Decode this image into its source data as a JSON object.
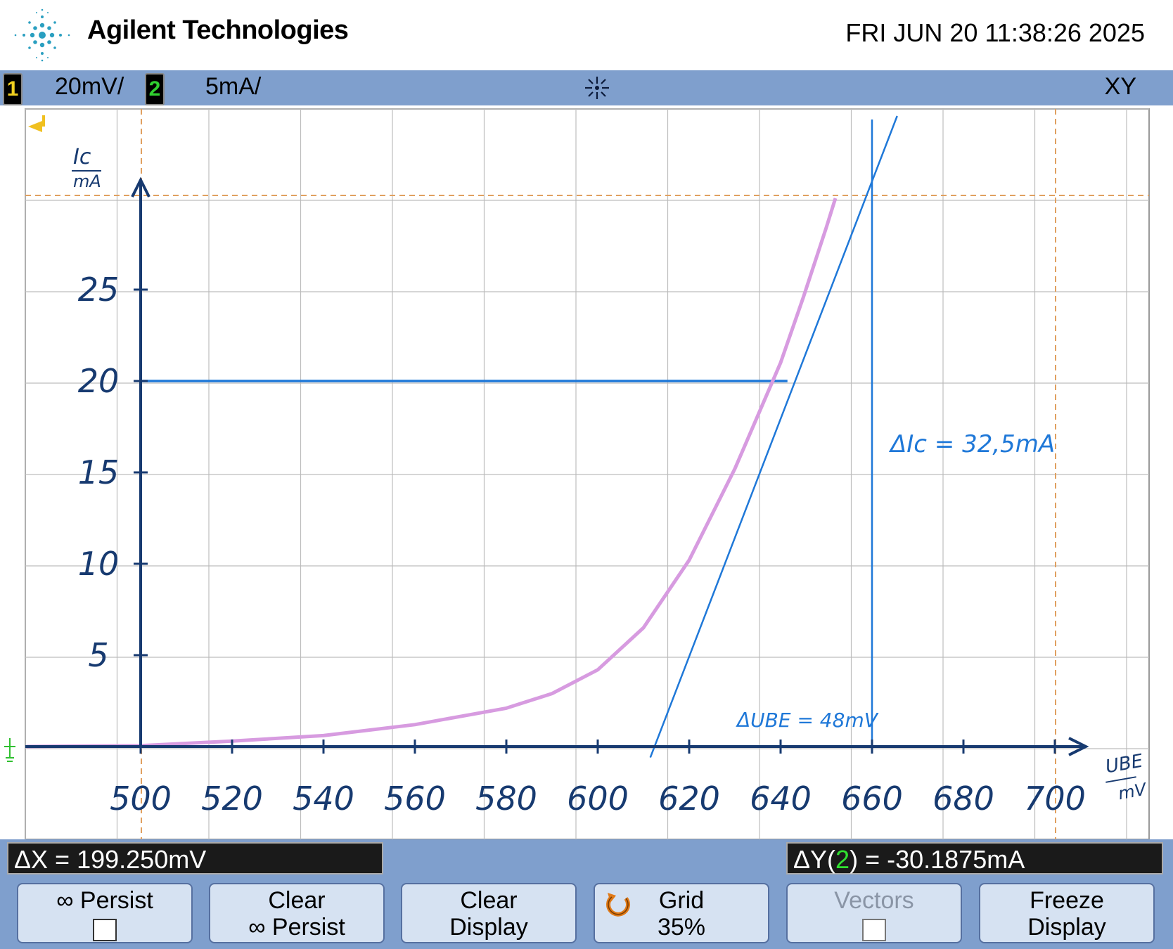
{
  "header": {
    "brand": "Agilent Technologies",
    "datetime": "FRI JUN 20 11:38:26 2025",
    "logo_icon": "agilent-spark-logo"
  },
  "status": {
    "ch1": {
      "number": "1",
      "scale": "20mV/",
      "color": "#f0d020"
    },
    "ch2": {
      "number": "2",
      "scale": "5mA/",
      "color": "#30d030"
    },
    "trigger_icon": "trigger-spark-icon",
    "mode": "XY"
  },
  "annotations": {
    "y_axis_label_top": "Ic",
    "y_axis_label_bottom": "mA",
    "x_axis_label_top": "UBE",
    "x_axis_label_bottom": "mV",
    "delta_ic": "ΔIc = 32,5mA",
    "delta_ube": "ΔUBE = 48mV"
  },
  "chart_data": {
    "type": "line",
    "x_ticks": [
      "500",
      "520",
      "540",
      "560",
      "580",
      "600",
      "620",
      "640",
      "660",
      "680",
      "700"
    ],
    "y_ticks": [
      "5",
      "10",
      "15",
      "20",
      "25"
    ],
    "xlim": [
      500,
      700
    ],
    "ylim": [
      0,
      30
    ],
    "grid": true,
    "series": [
      {
        "color": "#d79be0",
        "x": [
          475,
          500,
          520,
          540,
          560,
          580,
          590,
          600,
          610,
          620,
          630,
          640,
          645,
          650,
          652
        ],
        "y": [
          0,
          0.05,
          0.3,
          0.6,
          1.2,
          2.1,
          2.9,
          4.2,
          6.5,
          10.2,
          15.2,
          21.0,
          24.6,
          28.4,
          30.0
        ]
      }
    ],
    "tangent": {
      "x": [
        611.5,
        665.5
      ],
      "y": [
        -0.6,
        34.5
      ],
      "color": "#1f78d8"
    },
    "reference_line_y": 20,
    "reference_line_x": 660
  },
  "readouts": {
    "dx": "ΔX = 199.250mV",
    "dy_prefix": "ΔY(",
    "dy_channel": "2",
    "dy_suffix": ") = -30.1875mA"
  },
  "softkeys": {
    "persist": {
      "line1": "∞ Persist"
    },
    "clear_persist": {
      "line1": "Clear",
      "line2": "∞ Persist"
    },
    "clear_display": {
      "line1": "Clear",
      "line2": "Display"
    },
    "grid": {
      "line1": "Grid",
      "line2": "35%",
      "icon": "rotate-knob-icon"
    },
    "vectors": {
      "line1": "Vectors"
    },
    "freeze_display": {
      "line1": "Freeze",
      "line2": "Display"
    }
  }
}
